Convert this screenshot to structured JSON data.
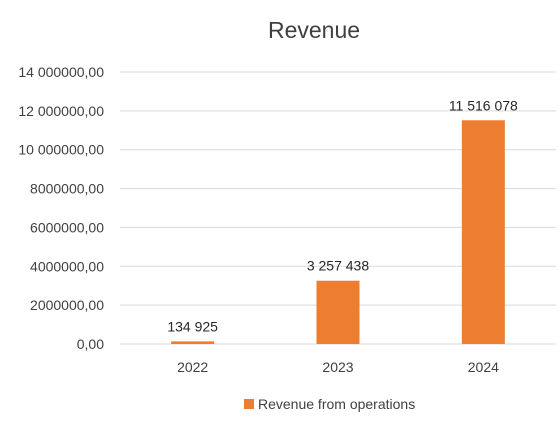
{
  "chart_data": {
    "type": "bar",
    "title": "Revenue",
    "categories": [
      "2022",
      "2023",
      "2024"
    ],
    "series": [
      {
        "name": "Revenue from operations",
        "values": [
          134925,
          3257438,
          11516078
        ],
        "data_labels": [
          "134 925",
          "3 257 438",
          "11 516 078"
        ],
        "color": "#ED7D31"
      }
    ],
    "ylim": [
      0,
      14000000
    ],
    "y_ticks": [
      0,
      2000000,
      4000000,
      6000000,
      8000000,
      10000000,
      12000000,
      14000000
    ],
    "y_tick_labels": [
      "0,00",
      "2000000,00",
      "4000000,00",
      "6000000,00",
      "8000000,00",
      "10 000000,00",
      "12 000000,00",
      "14 000000,00"
    ],
    "xlabel": "",
    "ylabel": "",
    "grid": true,
    "gridline_color": "#D9D9D9",
    "legend_position": "bottom"
  }
}
